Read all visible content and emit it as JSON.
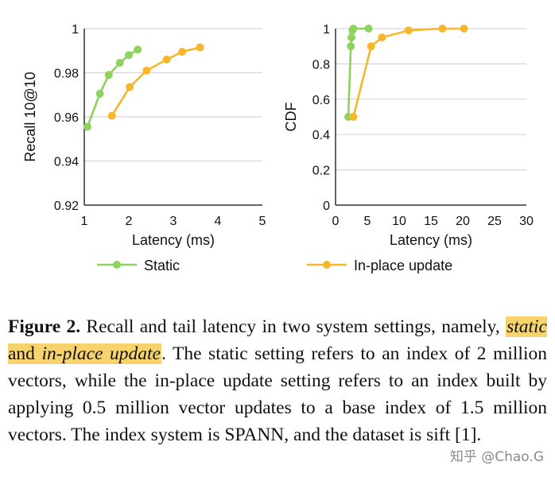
{
  "chart_data": [
    {
      "type": "line",
      "xlabel": "Latency (ms)",
      "ylabel": "Recall 10@10",
      "xlim": [
        1,
        5
      ],
      "ylim": [
        0.92,
        1
      ],
      "xticks": [
        "1",
        "2",
        "3",
        "4",
        "5"
      ],
      "yticks": [
        "0.92",
        "0.94",
        "0.96",
        "0.98",
        "1"
      ],
      "grid": "horizontal",
      "series": [
        {
          "name": "Static",
          "color": "#8ed35f",
          "x": [
            1.07,
            1.35,
            1.55,
            1.8,
            2.0,
            2.2
          ],
          "y": [
            0.9555,
            0.9705,
            0.979,
            0.9845,
            0.988,
            0.9905
          ]
        },
        {
          "name": "In-place update",
          "color": "#f7b62b",
          "x": [
            1.62,
            2.02,
            2.4,
            2.85,
            3.2,
            3.6
          ],
          "y": [
            0.9605,
            0.9735,
            0.981,
            0.986,
            0.9895,
            0.9915
          ]
        }
      ]
    },
    {
      "type": "line",
      "xlabel": "Latency (ms)",
      "ylabel": "CDF",
      "xlim": [
        0,
        30
      ],
      "ylim": [
        0,
        1
      ],
      "xticks": [
        "0",
        "5",
        "10",
        "15",
        "20",
        "25",
        "30"
      ],
      "yticks": [
        "0",
        "0.2",
        "0.4",
        "0.6",
        "0.8",
        "1"
      ],
      "grid": "horizontal",
      "series": [
        {
          "name": "Static",
          "color": "#8ed35f",
          "x": [
            2.0,
            2.4,
            2.5,
            2.65,
            2.8,
            5.2
          ],
          "y": [
            0.5,
            0.9,
            0.95,
            0.99,
            1.0,
            1.0
          ]
        },
        {
          "name": "In-place update",
          "color": "#f7b62b",
          "x": [
            2.8,
            5.6,
            7.3,
            11.5,
            16.8,
            20.2
          ],
          "y": [
            0.5,
            0.9,
            0.95,
            0.99,
            1.0,
            1.0
          ]
        }
      ]
    }
  ],
  "legend": {
    "placement": "bottom",
    "items": [
      {
        "label": "Static",
        "color": "#8ed35f"
      },
      {
        "label": "In-place update",
        "color": "#f7b62b"
      }
    ]
  },
  "caption": {
    "label": "Figure 2.",
    "text_a": " Recall and tail latency in two system settings, namely, ",
    "hl_static": "static",
    "hl_and": " and ",
    "hl_inplace": "in-place update",
    "text_b": ". The static setting refers to an index of 2 million vectors, while the in-place update setting refers to an index built by applying 0.5 million vector updates to a base index of 1.5 million vectors. The index system is SPANN, and the dataset is sift [",
    "ref": "1",
    "text_c": "]."
  },
  "watermark": "知乎 @Chao.G",
  "highlight_color": "#f7d36e"
}
